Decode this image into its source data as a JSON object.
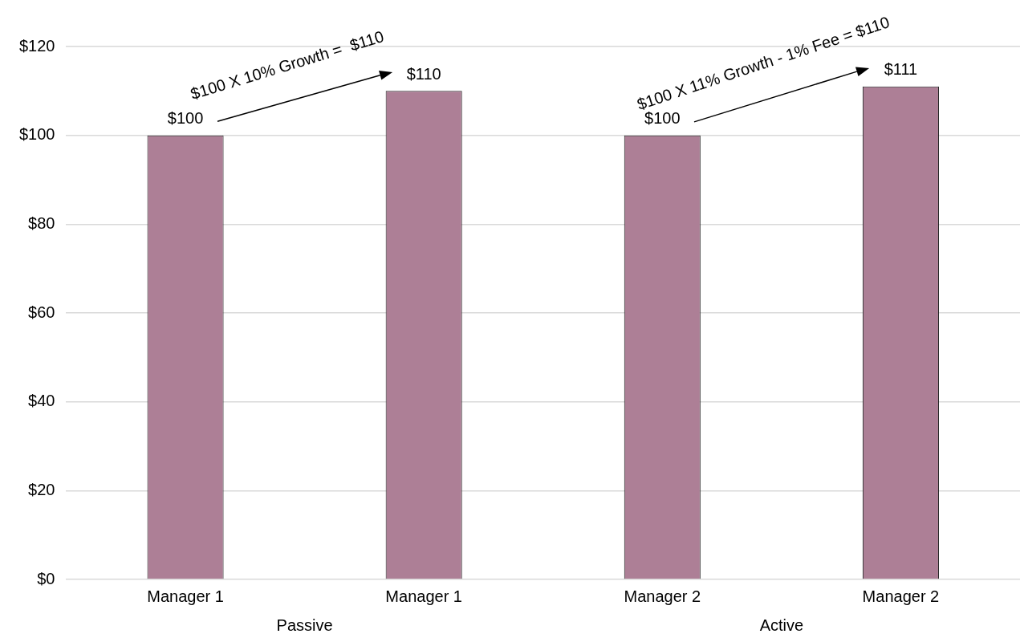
{
  "chart_data": {
    "type": "bar",
    "categories": [
      "Manager 1",
      "Manager 1",
      "Manager 2",
      "Manager 2"
    ],
    "values": [
      100,
      110,
      100,
      111
    ],
    "value_labels": [
      "$100",
      "$110",
      "$100",
      "$111"
    ],
    "color": "#ad7f96",
    "ylim": [
      0,
      120
    ],
    "yticks": [
      {
        "value": 0,
        "label": "$0"
      },
      {
        "value": 20,
        "label": "$20"
      },
      {
        "value": 40,
        "label": "$40"
      },
      {
        "value": 60,
        "label": "$60"
      },
      {
        "value": 80,
        "label": "$80"
      },
      {
        "value": 100,
        "label": "$100"
      },
      {
        "value": 120,
        "label": "$120"
      }
    ],
    "grid": "y",
    "legend": false,
    "annotations": [
      "$100 X 10% Growth =  $110",
      "$100 X 11% Growth - 1% Fee = $110",
      "Passive",
      "Active"
    ]
  }
}
